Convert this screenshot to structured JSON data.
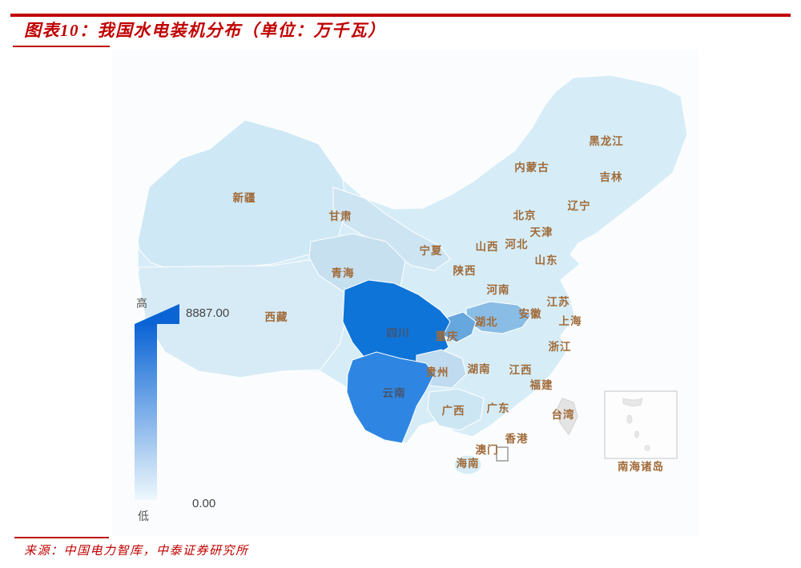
{
  "header": {
    "title_prefix": "图表10：",
    "title_text": "我国水电装机分布（单位：万千瓦）"
  },
  "footer": {
    "source": "来源：中国电力智库，中泰证券研究所"
  },
  "legend": {
    "high_label": "高",
    "low_label": "低",
    "max_value": "8887.00",
    "min_value": "0.00"
  },
  "colors": {
    "accent_red": "#c00000",
    "map_label": "#a06a38",
    "base": "#d6edf7",
    "xinjiang": "#cfe8f5",
    "tibet": "#d7ebf6",
    "qinghai": "#c6e0f0",
    "gansu": "#cde4f2",
    "guizhou": "#c0dbef",
    "guangxi": "#cde6f3",
    "hubei": "#8abde6",
    "chongqing": "#66a7de",
    "yunnan": "#2e86e2",
    "sichuan": "#0e74d8",
    "no_data": "#e4e4e4",
    "legend_top": "#0b64d4",
    "legend_bottom": "#eef8fd"
  },
  "chart_data": {
    "type": "heatmap",
    "subtype": "choropleth-map-of-china",
    "title": "我国水电装机分布",
    "unit": "万千瓦",
    "value_range": [
      0,
      8887
    ],
    "legend": {
      "high": "高",
      "low": "低",
      "max": "8887.00",
      "min": "0.00"
    },
    "regions": [
      {
        "name": "黑龙江",
        "intensity": "low"
      },
      {
        "name": "吉林",
        "intensity": "low"
      },
      {
        "name": "辽宁",
        "intensity": "low"
      },
      {
        "name": "内蒙古",
        "intensity": "low"
      },
      {
        "name": "北京",
        "intensity": "low"
      },
      {
        "name": "天津",
        "intensity": "low"
      },
      {
        "name": "河北",
        "intensity": "low"
      },
      {
        "name": "山西",
        "intensity": "low"
      },
      {
        "name": "山东",
        "intensity": "low"
      },
      {
        "name": "新疆",
        "intensity": "low"
      },
      {
        "name": "甘肃",
        "intensity": "low-medium"
      },
      {
        "name": "宁夏",
        "intensity": "low"
      },
      {
        "name": "陕西",
        "intensity": "low"
      },
      {
        "name": "青海",
        "intensity": "low-medium"
      },
      {
        "name": "河南",
        "intensity": "low"
      },
      {
        "name": "西藏",
        "intensity": "low"
      },
      {
        "name": "江苏",
        "intensity": "low"
      },
      {
        "name": "安徽",
        "intensity": "low"
      },
      {
        "name": "上海",
        "intensity": "low"
      },
      {
        "name": "四川",
        "intensity": "highest"
      },
      {
        "name": "重庆",
        "intensity": "medium"
      },
      {
        "name": "湖北",
        "intensity": "medium"
      },
      {
        "name": "浙江",
        "intensity": "low"
      },
      {
        "name": "贵州",
        "intensity": "low-medium"
      },
      {
        "name": "湖南",
        "intensity": "low-medium"
      },
      {
        "name": "江西",
        "intensity": "low"
      },
      {
        "name": "福建",
        "intensity": "low"
      },
      {
        "name": "云南",
        "intensity": "high"
      },
      {
        "name": "广西",
        "intensity": "low-medium"
      },
      {
        "name": "广东",
        "intensity": "low"
      },
      {
        "name": "台湾",
        "intensity": "no-data"
      },
      {
        "name": "香港",
        "intensity": "low"
      },
      {
        "name": "澳门",
        "intensity": "low"
      },
      {
        "name": "海南",
        "intensity": "low"
      },
      {
        "name": "南海诸岛",
        "intensity": "no-data"
      }
    ]
  }
}
